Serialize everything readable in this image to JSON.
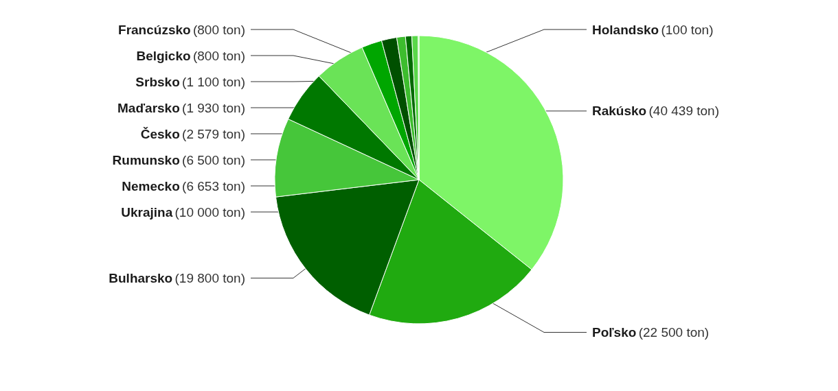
{
  "chart_data": {
    "type": "pie",
    "categories": [
      "Rakúsko",
      "Poľsko",
      "Bulharsko",
      "Ukrajina",
      "Nemecko",
      "Rumunsko",
      "Česko",
      "Maďarsko",
      "Srbsko",
      "Belgicko",
      "Francúzsko",
      "Holandsko"
    ],
    "values": [
      40439,
      22500,
      19800,
      10000,
      6653,
      6500,
      2579,
      1930,
      1100,
      800,
      800,
      100
    ],
    "value_labels": [
      "(40 439 ton)",
      "(22 500 ton)",
      "(19 800 ton)",
      "(10 000 ton)",
      "(6 653 ton)",
      "(6 500 ton)",
      "(2 579 ton)",
      "(1 930 ton)",
      "(1 100 ton)",
      "(800 ton)",
      "(800 ton)",
      "(100 ton)"
    ],
    "colors": [
      "#7ef567",
      "#20aa10",
      "#005f00",
      "#46c63a",
      "#007800",
      "#6ae357",
      "#00a600",
      "#005000",
      "#3dbd2e",
      "#006a00",
      "#5ad84a",
      "#8cf47a"
    ],
    "legend": false
  }
}
